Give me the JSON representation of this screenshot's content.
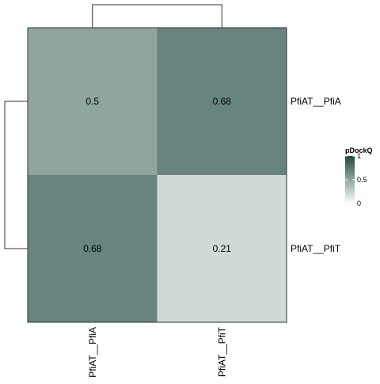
{
  "chart_data": {
    "type": "heatmap",
    "title": "",
    "rows": [
      "PfiAT__PfiA",
      "PfiAT__PfiT"
    ],
    "columns": [
      "PfiAT__PfiA",
      "PfiAT__PfiT"
    ],
    "values": [
      [
        0.5,
        0.68
      ],
      [
        0.68,
        0.21
      ]
    ],
    "cell_labels": [
      [
        "0.5",
        "0.68"
      ],
      [
        "0.68",
        "0.21"
      ]
    ],
    "color_scale": {
      "min": 0,
      "max": 1,
      "colors": [
        "#ffffff",
        "#1f4a41"
      ],
      "legend_title": "pDockQ",
      "ticks": [
        {
          "value": 1,
          "label": "1"
        },
        {
          "value": 0.5,
          "label": "0.5"
        },
        {
          "value": 0,
          "label": "0"
        }
      ]
    },
    "dendrograms": {
      "rows": true,
      "columns": true
    },
    "legend_position": "right"
  }
}
